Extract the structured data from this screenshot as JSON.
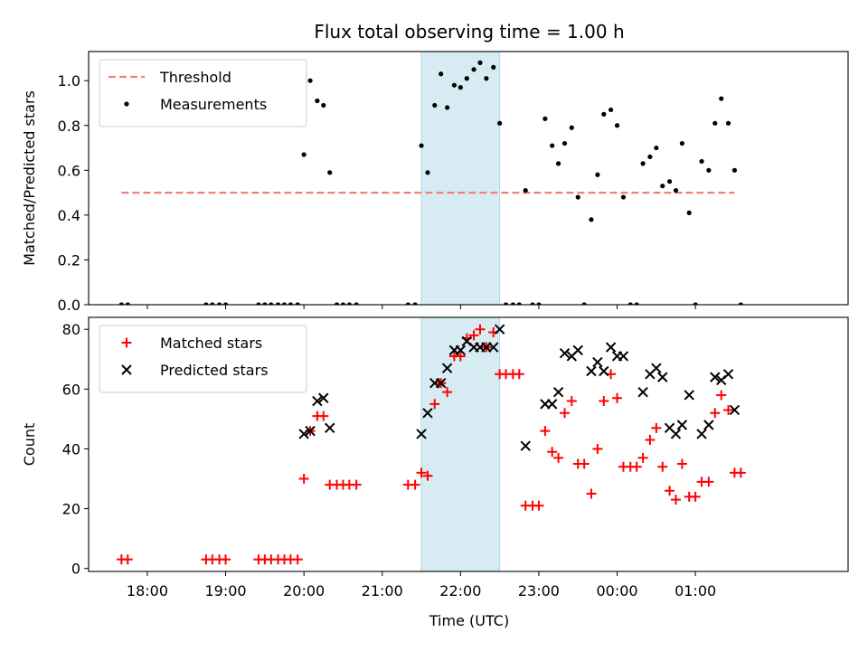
{
  "chart_data": [
    {
      "type": "scatter",
      "title": "Flux total observing time = 1.00 h",
      "ylabel": "Matched/Predicted stars",
      "xlabel": "",
      "x_unit": "hours",
      "xlim": [
        17.25,
        26.95
      ],
      "ylim": [
        0.0,
        1.13
      ],
      "yticks": [
        0.0,
        0.2,
        0.4,
        0.6,
        0.8,
        1.0
      ],
      "ytick_labels": [
        "0.0",
        "0.2",
        "0.4",
        "0.6",
        "0.8",
        "1.0"
      ],
      "highlight_span": [
        21.5,
        22.5
      ],
      "legend_position": "upper-left",
      "threshold": {
        "name": "Threshold",
        "value": 0.5,
        "x_range": [
          17.67,
          25.5
        ],
        "color": "#f08080",
        "style": "dashed"
      },
      "series": [
        {
          "name": "Measurements",
          "color": "#000000",
          "marker": "dot",
          "points": [
            [
              17.67,
              0
            ],
            [
              17.75,
              0
            ],
            [
              18.75,
              0
            ],
            [
              18.83,
              0
            ],
            [
              18.92,
              0
            ],
            [
              19.0,
              0
            ],
            [
              19.42,
              0
            ],
            [
              19.5,
              0
            ],
            [
              19.58,
              0
            ],
            [
              19.67,
              0
            ],
            [
              19.75,
              0
            ],
            [
              19.83,
              0
            ],
            [
              19.92,
              0
            ],
            [
              20.0,
              0.67
            ],
            [
              20.08,
              1.0
            ],
            [
              20.17,
              0.91
            ],
            [
              20.25,
              0.89
            ],
            [
              20.33,
              0.59
            ],
            [
              20.42,
              0
            ],
            [
              20.5,
              0
            ],
            [
              20.58,
              0
            ],
            [
              20.67,
              0
            ],
            [
              21.33,
              0
            ],
            [
              21.42,
              0
            ],
            [
              21.5,
              0.71
            ],
            [
              21.58,
              0.59
            ],
            [
              21.67,
              0.89
            ],
            [
              21.75,
              1.03
            ],
            [
              21.83,
              0.88
            ],
            [
              21.92,
              0.98
            ],
            [
              22.0,
              0.97
            ],
            [
              22.08,
              1.01
            ],
            [
              22.17,
              1.05
            ],
            [
              22.25,
              1.08
            ],
            [
              22.33,
              1.01
            ],
            [
              22.42,
              1.06
            ],
            [
              22.5,
              0.81
            ],
            [
              22.58,
              0
            ],
            [
              22.67,
              0
            ],
            [
              22.75,
              0
            ],
            [
              22.83,
              0.51
            ],
            [
              22.92,
              0
            ],
            [
              23.0,
              0
            ],
            [
              23.08,
              0.83
            ],
            [
              23.17,
              0.71
            ],
            [
              23.25,
              0.63
            ],
            [
              23.33,
              0.72
            ],
            [
              23.42,
              0.79
            ],
            [
              23.5,
              0.48
            ],
            [
              23.58,
              0
            ],
            [
              23.67,
              0.38
            ],
            [
              23.75,
              0.58
            ],
            [
              23.83,
              0.85
            ],
            [
              23.92,
              0.87
            ],
            [
              24.0,
              0.8
            ],
            [
              24.08,
              0.48
            ],
            [
              24.17,
              0
            ],
            [
              24.25,
              0
            ],
            [
              24.33,
              0.63
            ],
            [
              24.42,
              0.66
            ],
            [
              24.5,
              0.7
            ],
            [
              24.58,
              0.53
            ],
            [
              24.67,
              0.55
            ],
            [
              24.75,
              0.51
            ],
            [
              24.83,
              0.72
            ],
            [
              24.92,
              0.41
            ],
            [
              25.0,
              0
            ],
            [
              25.08,
              0.64
            ],
            [
              25.17,
              0.6
            ],
            [
              25.25,
              0.81
            ],
            [
              25.33,
              0.92
            ],
            [
              25.42,
              0.81
            ],
            [
              25.5,
              0.6
            ],
            [
              25.58,
              0
            ]
          ]
        }
      ]
    },
    {
      "type": "scatter",
      "title": "",
      "ylabel": "Count",
      "xlabel": "Time (UTC)",
      "x_unit": "hours",
      "xlim": [
        17.25,
        26.95
      ],
      "ylim": [
        -1,
        84
      ],
      "yticks": [
        0,
        20,
        40,
        60,
        80
      ],
      "ytick_labels": [
        "0",
        "20",
        "40",
        "60",
        "80"
      ],
      "xticks": [
        18,
        19,
        20,
        21,
        22,
        23,
        24,
        25
      ],
      "xtick_labels": [
        "18:00",
        "19:00",
        "20:00",
        "21:00",
        "22:00",
        "23:00",
        "00:00",
        "01:00"
      ],
      "highlight_span": [
        21.5,
        22.5
      ],
      "legend_position": "upper-left",
      "series": [
        {
          "name": "Matched stars",
          "color": "#ff0000",
          "marker": "plus",
          "points": [
            [
              17.67,
              3
            ],
            [
              17.75,
              3
            ],
            [
              18.75,
              3
            ],
            [
              18.83,
              3
            ],
            [
              18.92,
              3
            ],
            [
              19.0,
              3
            ],
            [
              19.42,
              3
            ],
            [
              19.5,
              3
            ],
            [
              19.58,
              3
            ],
            [
              19.67,
              3
            ],
            [
              19.75,
              3
            ],
            [
              19.83,
              3
            ],
            [
              19.92,
              3
            ],
            [
              20.0,
              30
            ],
            [
              20.08,
              46
            ],
            [
              20.17,
              51
            ],
            [
              20.25,
              51
            ],
            [
              20.33,
              28
            ],
            [
              20.42,
              28
            ],
            [
              20.5,
              28
            ],
            [
              20.58,
              28
            ],
            [
              20.67,
              28
            ],
            [
              21.33,
              28
            ],
            [
              21.42,
              28
            ],
            [
              21.5,
              32
            ],
            [
              21.58,
              31
            ],
            [
              21.67,
              55
            ],
            [
              21.75,
              62
            ],
            [
              21.83,
              59
            ],
            [
              21.92,
              71
            ],
            [
              22.0,
              71
            ],
            [
              22.08,
              77
            ],
            [
              22.17,
              78
            ],
            [
              22.25,
              80
            ],
            [
              22.33,
              74
            ],
            [
              22.42,
              79
            ],
            [
              22.5,
              65
            ],
            [
              22.58,
              65
            ],
            [
              22.67,
              65
            ],
            [
              22.75,
              65
            ],
            [
              22.83,
              21
            ],
            [
              22.92,
              21
            ],
            [
              23.0,
              21
            ],
            [
              23.08,
              46
            ],
            [
              23.17,
              39
            ],
            [
              23.25,
              37
            ],
            [
              23.33,
              52
            ],
            [
              23.42,
              56
            ],
            [
              23.5,
              35
            ],
            [
              23.58,
              35
            ],
            [
              23.67,
              25
            ],
            [
              23.75,
              40
            ],
            [
              23.83,
              56
            ],
            [
              23.92,
              65
            ],
            [
              24.0,
              57
            ],
            [
              24.08,
              34
            ],
            [
              24.17,
              34
            ],
            [
              24.25,
              34
            ],
            [
              24.33,
              37
            ],
            [
              24.42,
              43
            ],
            [
              24.5,
              47
            ],
            [
              24.58,
              34
            ],
            [
              24.67,
              26
            ],
            [
              24.75,
              23
            ],
            [
              24.83,
              35
            ],
            [
              24.92,
              24
            ],
            [
              25.0,
              24
            ],
            [
              25.08,
              29
            ],
            [
              25.17,
              29
            ],
            [
              25.25,
              52
            ],
            [
              25.33,
              58
            ],
            [
              25.42,
              53
            ],
            [
              25.5,
              32
            ],
            [
              25.58,
              32
            ]
          ]
        },
        {
          "name": "Predicted stars",
          "color": "#000000",
          "marker": "x",
          "points": [
            [
              20.0,
              45
            ],
            [
              20.08,
              46
            ],
            [
              20.17,
              56
            ],
            [
              20.25,
              57
            ],
            [
              20.33,
              47
            ],
            [
              21.5,
              45
            ],
            [
              21.58,
              52
            ],
            [
              21.67,
              62
            ],
            [
              21.75,
              62
            ],
            [
              21.83,
              67
            ],
            [
              21.92,
              73
            ],
            [
              22.0,
              73
            ],
            [
              22.08,
              76
            ],
            [
              22.17,
              74
            ],
            [
              22.25,
              74
            ],
            [
              22.33,
              74
            ],
            [
              22.42,
              74
            ],
            [
              22.5,
              80
            ],
            [
              22.83,
              41
            ],
            [
              23.08,
              55
            ],
            [
              23.17,
              55
            ],
            [
              23.25,
              59
            ],
            [
              23.33,
              72
            ],
            [
              23.42,
              71
            ],
            [
              23.5,
              73
            ],
            [
              23.67,
              66
            ],
            [
              23.75,
              69
            ],
            [
              23.83,
              66
            ],
            [
              23.92,
              74
            ],
            [
              24.0,
              71
            ],
            [
              24.08,
              71
            ],
            [
              24.33,
              59
            ],
            [
              24.42,
              65
            ],
            [
              24.5,
              67
            ],
            [
              24.58,
              64
            ],
            [
              24.67,
              47
            ],
            [
              24.75,
              45
            ],
            [
              24.83,
              48
            ],
            [
              24.92,
              58
            ],
            [
              25.08,
              45
            ],
            [
              25.17,
              48
            ],
            [
              25.25,
              64
            ],
            [
              25.33,
              63
            ],
            [
              25.42,
              65
            ],
            [
              25.5,
              53
            ]
          ]
        }
      ]
    }
  ]
}
